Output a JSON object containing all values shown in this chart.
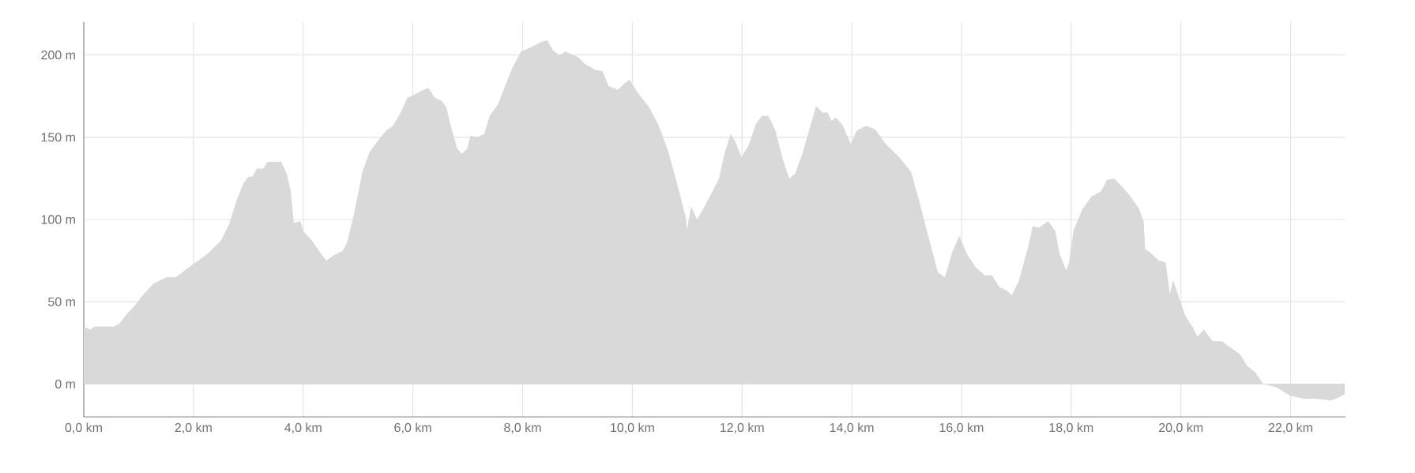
{
  "chart_data": {
    "type": "area",
    "color": "#d9d9d9",
    "grid": true,
    "xlim": [
      0,
      23
    ],
    "ylim": [
      -20,
      220
    ],
    "xticks": [
      {
        "value": 0,
        "label": "0,0 km"
      },
      {
        "value": 2,
        "label": "2,0 km"
      },
      {
        "value": 4,
        "label": "4,0 km"
      },
      {
        "value": 6,
        "label": "6,0 km"
      },
      {
        "value": 8,
        "label": "8,0 km"
      },
      {
        "value": 10,
        "label": "10,0 km"
      },
      {
        "value": 12,
        "label": "12,0 km"
      },
      {
        "value": 14,
        "label": "14,0 km"
      },
      {
        "value": 16,
        "label": "16,0 km"
      },
      {
        "value": 18,
        "label": "18,0 km"
      },
      {
        "value": 20,
        "label": "20,0 km"
      },
      {
        "value": 22,
        "label": "22,0 km"
      }
    ],
    "yticks": [
      {
        "value": 0,
        "label": "0 m"
      },
      {
        "value": 50,
        "label": "50 m"
      },
      {
        "value": 100,
        "label": "100 m"
      },
      {
        "value": 150,
        "label": "150 m"
      },
      {
        "value": 200,
        "label": "200 m"
      }
    ],
    "x": [
      0,
      0.12,
      0.2,
      0.56,
      0.66,
      0.77,
      0.94,
      1.1,
      1.27,
      1.51,
      1.68,
      1.84,
      2.25,
      2.5,
      2.66,
      2.78,
      2.91,
      3.0,
      3.07,
      3.16,
      3.27,
      3.35,
      3.49,
      3.6,
      3.7,
      3.77,
      3.83,
      3.95,
      4.0,
      4.14,
      4.31,
      4.42,
      4.55,
      4.72,
      4.8,
      4.93,
      5.08,
      5.21,
      5.34,
      5.51,
      5.64,
      5.79,
      5.9,
      6.03,
      6.2,
      6.28,
      6.4,
      6.53,
      6.61,
      6.69,
      6.81,
      6.89,
      6.99,
      7.05,
      7.18,
      7.3,
      7.4,
      7.55,
      7.68,
      7.81,
      7.97,
      8.17,
      8.34,
      8.45,
      8.55,
      8.67,
      8.78,
      9.0,
      9.16,
      9.33,
      9.46,
      9.57,
      9.74,
      9.87,
      9.95,
      10.1,
      10.31,
      10.47,
      10.64,
      10.8,
      10.97,
      11.0,
      11.07,
      11.18,
      11.3,
      11.46,
      11.58,
      11.68,
      11.79,
      11.87,
      11.99,
      12.12,
      12.25,
      12.36,
      12.48,
      12.61,
      12.74,
      12.86,
      12.97,
      13.1,
      13.22,
      13.35,
      13.47,
      13.56,
      13.63,
      13.71,
      13.84,
      13.98,
      14.09,
      14.26,
      14.42,
      14.62,
      14.86,
      15.08,
      15.24,
      15.41,
      15.57,
      15.7,
      15.83,
      15.96,
      16.1,
      16.26,
      16.43,
      16.56,
      16.69,
      16.81,
      16.92,
      17.05,
      17.22,
      17.3,
      17.41,
      17.58,
      17.71,
      17.79,
      17.91,
      17.96,
      18.04,
      18.2,
      18.37,
      18.54,
      18.65,
      18.78,
      18.9,
      19.06,
      19.23,
      19.32,
      19.35,
      19.44,
      19.6,
      19.72,
      19.8,
      19.86,
      19.97,
      20.09,
      20.21,
      20.3,
      20.42,
      20.58,
      20.75,
      20.91,
      21.08,
      21.21,
      21.36,
      21.5,
      21.74,
      21.99,
      22.24,
      22.48,
      22.73,
      22.89,
      22.99
    ],
    "values": [
      35,
      33,
      35,
      35,
      37,
      42,
      48,
      55,
      61,
      65,
      65,
      69,
      79,
      87,
      98,
      111,
      122,
      126,
      126,
      131,
      131,
      135,
      135,
      135,
      128,
      118,
      98,
      99,
      93,
      88,
      80,
      75,
      78,
      81,
      86,
      104,
      129,
      141,
      147,
      154,
      157,
      166,
      174,
      176,
      179,
      180,
      174,
      172,
      168,
      157,
      143,
      140,
      143,
      151,
      150,
      152,
      163,
      170,
      181,
      192,
      202,
      205,
      208,
      209,
      203,
      200,
      202,
      199,
      194,
      191,
      190,
      181,
      179,
      183,
      185,
      177,
      168,
      158,
      143,
      124,
      102,
      94,
      108,
      100,
      107,
      117,
      125,
      140,
      152,
      148,
      138,
      145,
      158,
      163,
      163,
      154,
      137,
      125,
      128,
      140,
      154,
      169,
      165,
      165,
      160,
      162,
      157,
      146,
      154,
      157,
      155,
      146,
      138,
      129,
      110,
      88,
      68,
      65,
      80,
      90,
      79,
      71,
      66,
      66,
      59,
      57,
      54,
      63,
      84,
      96,
      95,
      99,
      93,
      79,
      69,
      74,
      93,
      106,
      114,
      117,
      124,
      125,
      121,
      115,
      107,
      99,
      82,
      80,
      75,
      74,
      55,
      63,
      52,
      41,
      35,
      29,
      33,
      26,
      26,
      22,
      18,
      11,
      7,
      0,
      -2,
      -7,
      -9,
      -9,
      -10,
      -8,
      -6
    ]
  }
}
